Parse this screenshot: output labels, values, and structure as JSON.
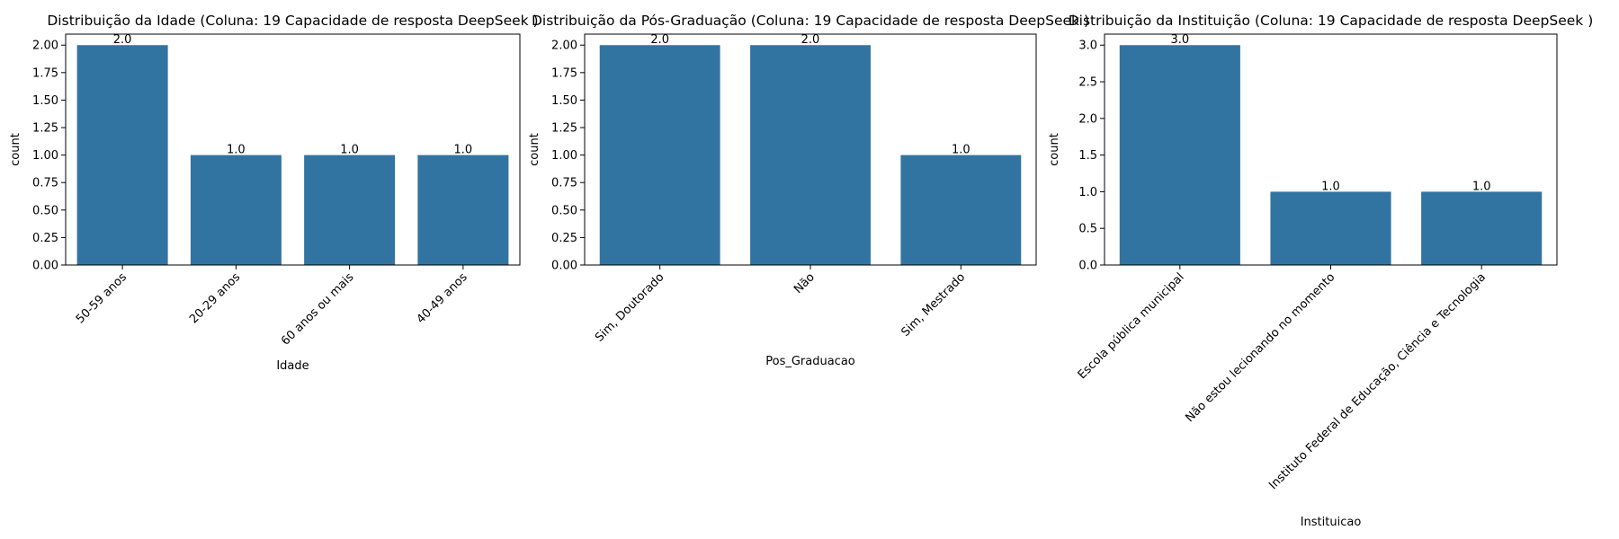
{
  "chart_data": [
    {
      "type": "bar",
      "title": "Distribuição da Idade (Coluna: 19 Capacidade de resposta DeepSeek )",
      "xlabel": "Idade",
      "ylabel": "count",
      "categories": [
        "50-59 anos",
        "20-29 anos",
        "60 anos ou mais",
        "40-49 anos"
      ],
      "values": [
        2,
        1,
        1,
        1
      ],
      "value_labels": [
        "2.0",
        "1.0",
        "1.0",
        "1.0"
      ],
      "ylim": [
        0,
        2.1
      ],
      "yticks": [
        0,
        0.25,
        0.5,
        0.75,
        1.0,
        1.25,
        1.5,
        1.75,
        2.0
      ],
      "ytick_labels": [
        "0.00",
        "0.25",
        "0.50",
        "0.75",
        "1.00",
        "1.25",
        "1.50",
        "1.75",
        "2.00"
      ],
      "grid": false,
      "color": "#3274a1"
    },
    {
      "type": "bar",
      "title": "Distribuição da Pós-Graduação (Coluna: 19 Capacidade de resposta DeepSeek )",
      "xlabel": "Pos_Graduacao",
      "ylabel": "count",
      "categories": [
        "Sim, Doutorado",
        "Não",
        "Sim, Mestrado"
      ],
      "values": [
        2,
        2,
        1
      ],
      "value_labels": [
        "2.0",
        "2.0",
        "1.0"
      ],
      "ylim": [
        0,
        2.1
      ],
      "yticks": [
        0,
        0.25,
        0.5,
        0.75,
        1.0,
        1.25,
        1.5,
        1.75,
        2.0
      ],
      "ytick_labels": [
        "0.00",
        "0.25",
        "0.50",
        "0.75",
        "1.00",
        "1.25",
        "1.50",
        "1.75",
        "2.00"
      ],
      "grid": false,
      "color": "#3274a1"
    },
    {
      "type": "bar",
      "title": "Distribuição da Instituição (Coluna: 19 Capacidade de resposta DeepSeek )",
      "xlabel": "Instituicao",
      "ylabel": "count",
      "categories": [
        "Escola pública municipal",
        "Não estou lecionando no momento",
        "Instituto Federal de Educação, Ciência e Tecnologia"
      ],
      "values": [
        3,
        1,
        1
      ],
      "value_labels": [
        "3.0",
        "1.0",
        "1.0"
      ],
      "ylim": [
        0,
        3.15
      ],
      "yticks": [
        0,
        0.5,
        1.0,
        1.5,
        2.0,
        2.5,
        3.0
      ],
      "ytick_labels": [
        "0.0",
        "0.5",
        "1.0",
        "1.5",
        "2.0",
        "2.5",
        "3.0"
      ],
      "grid": false,
      "color": "#3274a1"
    }
  ]
}
